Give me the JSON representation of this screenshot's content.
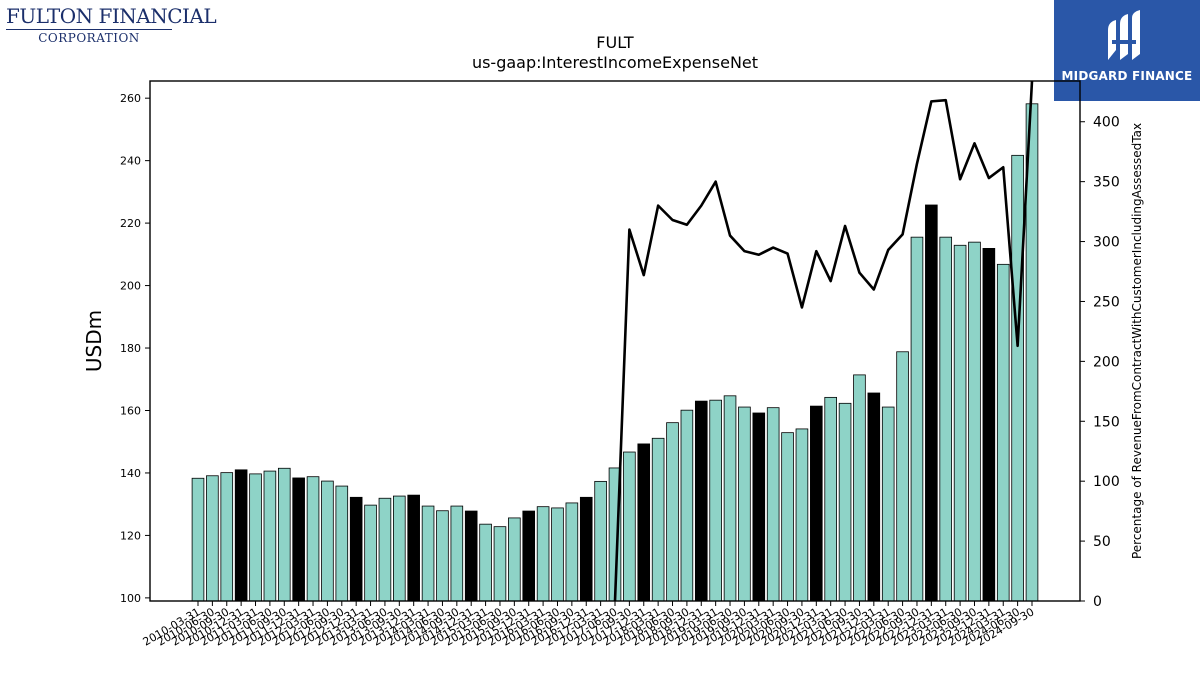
{
  "logos": {
    "left_line1": "FULTON FINANCIAL",
    "left_line2": "CORPORATION",
    "right_wordmark": "MIDGARD FINANCE",
    "right_bg": "#2a57a8"
  },
  "chart_data": {
    "type": "bar",
    "title": "FULT",
    "subtitle": "us-gaap:InterestIncomeExpenseNet",
    "ylabel": "USDm",
    "y2label": "Percentage of RevenueFromContractWithCustomerIncludingAssessedTax",
    "ylim": [
      99,
      265.5
    ],
    "y2lim": [
      0,
      434
    ],
    "yticks": [
      100,
      120,
      140,
      160,
      180,
      200,
      220,
      240,
      260
    ],
    "y2ticks": [
      0,
      50,
      100,
      150,
      200,
      250,
      300,
      350,
      400
    ],
    "bar_color": "#8ed3c7",
    "highlight_color": "#000000",
    "line_color": "#000000",
    "categories": [
      "2010-03-31",
      "2010-06-30",
      "2010-09-30",
      "2010-12-31",
      "2011-03-31",
      "2011-06-30",
      "2011-09-30",
      "2011-12-31",
      "2012-03-31",
      "2012-06-30",
      "2012-09-30",
      "2012-12-31",
      "2013-03-31",
      "2013-06-30",
      "2013-09-30",
      "2013-12-31",
      "2014-03-31",
      "2014-06-30",
      "2014-09-30",
      "2014-12-31",
      "2015-03-31",
      "2015-06-30",
      "2015-09-30",
      "2015-12-31",
      "2016-03-31",
      "2016-06-30",
      "2016-09-30",
      "2016-12-31",
      "2017-03-31",
      "2017-06-30",
      "2017-09-30",
      "2017-12-31",
      "2018-03-31",
      "2018-06-30",
      "2018-09-30",
      "2018-12-31",
      "2019-03-31",
      "2019-06-30",
      "2019-09-30",
      "2019-12-31",
      "2020-03-31",
      "2020-06-30",
      "2020-09-30",
      "2020-12-31",
      "2021-03-31",
      "2021-06-30",
      "2021-09-30",
      "2021-12-31",
      "2022-03-31",
      "2022-06-30",
      "2022-09-30",
      "2022-12-31",
      "2023-03-31",
      "2023-06-30",
      "2023-09-30",
      "2023-12-31",
      "2024-03-31",
      "2024-06-30",
      "2024-09-30"
    ],
    "series": [
      {
        "values": [
          138.3,
          139.1,
          140.1,
          141.0,
          139.7,
          140.6,
          141.5,
          138.4,
          138.8,
          137.4,
          135.8,
          132.2,
          129.7,
          131.9,
          132.6,
          132.9,
          129.4,
          127.9,
          129.4,
          127.8,
          123.6,
          122.8,
          125.6,
          127.8,
          129.2,
          128.8,
          130.4,
          132.2,
          137.3,
          141.6,
          146.7,
          149.3,
          151.1,
          156.1,
          160.1,
          163.0,
          163.3,
          164.7,
          161.1,
          159.2,
          160.9,
          152.9,
          154.1,
          161.4,
          164.2,
          162.3,
          171.4,
          165.6,
          161.1,
          178.8,
          215.5,
          225.8,
          215.5,
          212.9,
          213.9,
          211.9,
          206.8,
          241.7,
          258.2
        ]
      },
      {
        "type": "line",
        "values": [
          null,
          null,
          null,
          null,
          null,
          null,
          null,
          null,
          null,
          null,
          null,
          null,
          null,
          null,
          null,
          null,
          null,
          null,
          null,
          null,
          null,
          null,
          null,
          null,
          null,
          null,
          null,
          null,
          null,
          0,
          310,
          272,
          330,
          318,
          314,
          330,
          350,
          305,
          292,
          289,
          295,
          290,
          245,
          292,
          267,
          313,
          274,
          260,
          293,
          306,
          365,
          417,
          418,
          352,
          382,
          353,
          362,
          213,
          434
        ]
      }
    ],
    "highlight_indices": [
      3,
      7,
      11,
      15,
      19,
      23,
      27,
      31,
      35,
      39,
      43,
      47,
      51,
      55
    ]
  }
}
